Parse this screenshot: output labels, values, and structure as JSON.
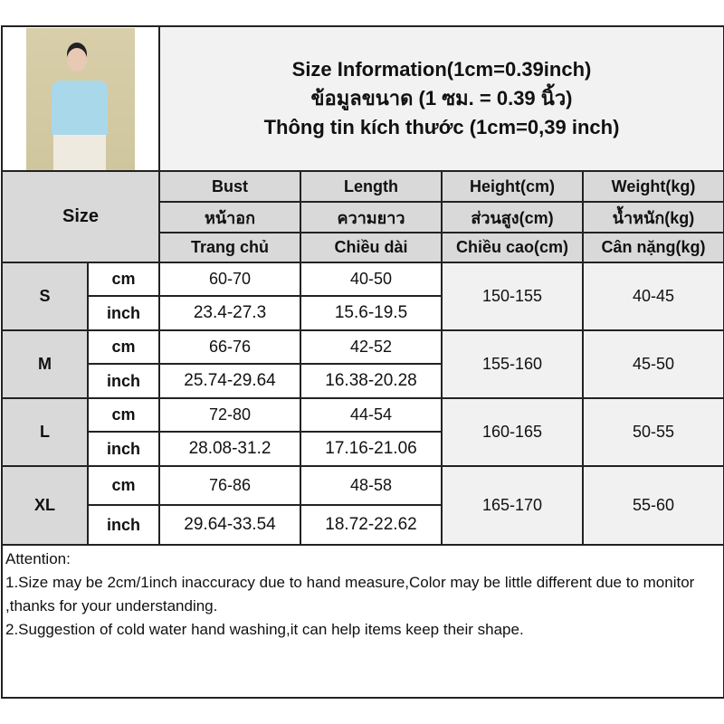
{
  "title_lines": [
    "Size Information(1cm=0.39inch)",
    "ข้อมูลขนาด (1 ซม. = 0.39 นิ้ว)",
    "Thông tin kích thước (1cm=0,39 inch)"
  ],
  "size_header": "Size",
  "columns": [
    {
      "en": "Bust",
      "th": "หน้าอก",
      "vi": "Trang chủ"
    },
    {
      "en": "Length",
      "th": "ความยาว",
      "vi": "Chiều dài"
    },
    {
      "en": "Height(cm)",
      "th": "ส่วนสูง(cm)",
      "vi": "Chiều cao(cm)"
    },
    {
      "en": "Weight(kg)",
      "th": "น้ำหนัก(kg)",
      "vi": "Cân nặng(kg)"
    }
  ],
  "units": {
    "cm": "cm",
    "inch": "inch"
  },
  "rows": [
    {
      "size": "S",
      "bust_cm": "60-70",
      "length_cm": "40-50",
      "bust_inch": "23.4-27.3",
      "length_inch": "15.6-19.5",
      "height": "150-155",
      "weight": "40-45"
    },
    {
      "size": "M",
      "bust_cm": "66-76",
      "length_cm": "42-52",
      "bust_inch": "25.74-29.64",
      "length_inch": "16.38-20.28",
      "height": "155-160",
      "weight": "45-50"
    },
    {
      "size": "L",
      "bust_cm": "72-80",
      "length_cm": "44-54",
      "bust_inch": "28.08-31.2",
      "length_inch": "17.16-21.06",
      "height": "160-165",
      "weight": "50-55"
    },
    {
      "size": "XL",
      "bust_cm": "76-86",
      "length_cm": "48-58",
      "bust_inch": "29.64-33.54",
      "length_inch": "18.72-22.62",
      "height": "165-170",
      "weight": "55-60"
    }
  ],
  "attention": {
    "heading": "Attention:",
    "notes": [
      "1.Size may be 2cm/1inch inaccuracy due to hand measure,Color may be little different due to monitor ,thanks for your understanding.",
      "2.Suggestion of cold water hand washing,it can help items keep their shape."
    ]
  }
}
